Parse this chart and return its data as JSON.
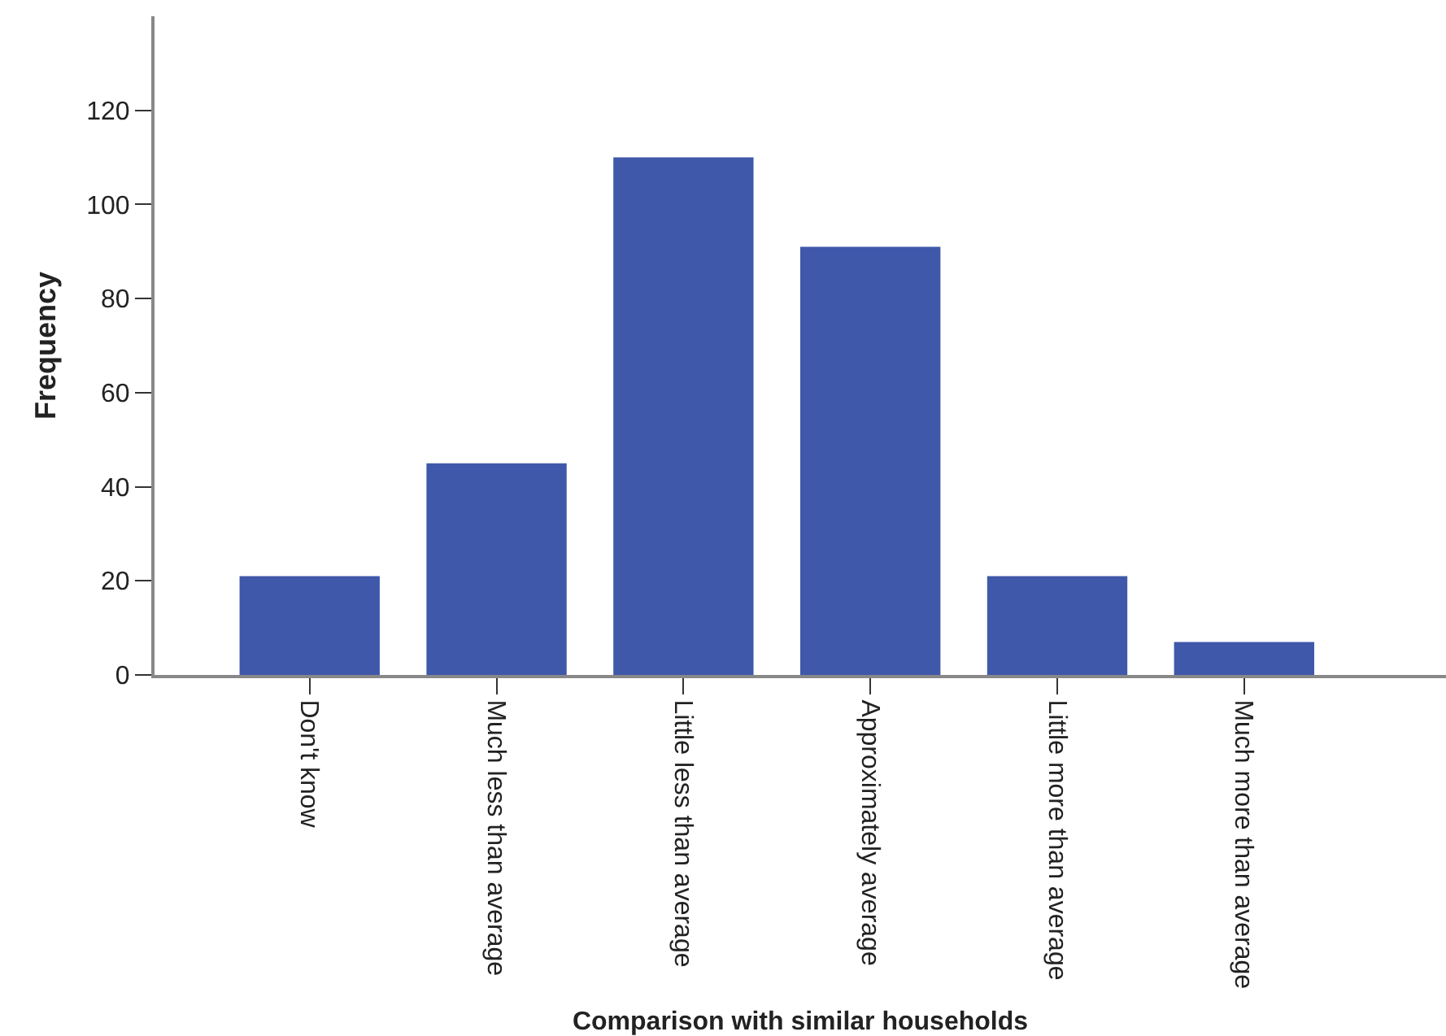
{
  "chart_data": {
    "type": "bar",
    "xlabel": "Comparison with similar households",
    "ylabel": "Frequency",
    "categories": [
      "Don't know",
      "Much less than average",
      "Little less than average",
      "Approximately average",
      "Little more than average",
      "Much more than average"
    ],
    "values": [
      21,
      45,
      110,
      91,
      21,
      7
    ],
    "color": "#3f58aa",
    "ylim": [
      0,
      140
    ],
    "yticks": [
      0,
      20,
      40,
      60,
      80,
      100,
      120
    ],
    "grid": false,
    "legend": false
  }
}
